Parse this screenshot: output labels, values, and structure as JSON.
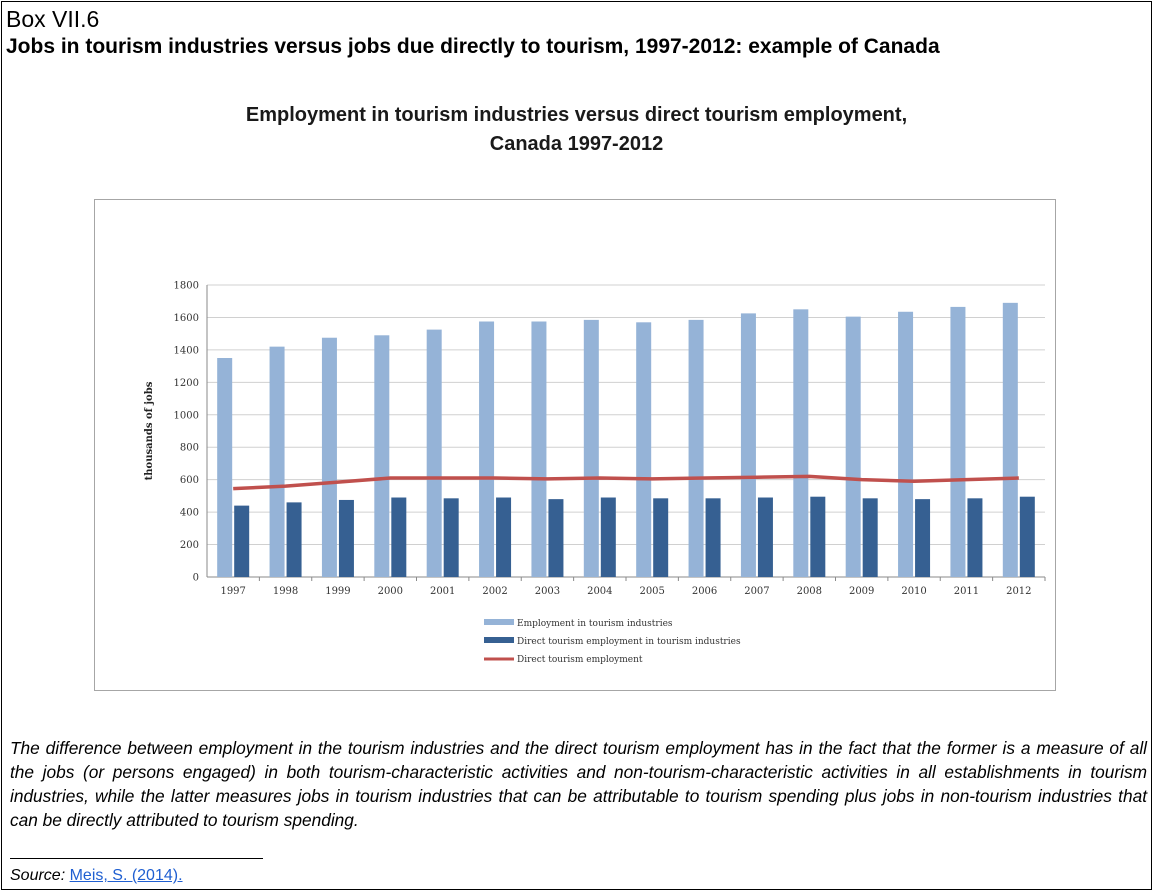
{
  "box": {
    "label": "Box VII.6",
    "title": "Jobs in tourism industries versus jobs due directly to tourism, 1997-2012: example of Canada"
  },
  "chart_data": {
    "type": "bar",
    "title_lines": [
      "Employment in tourism industries versus direct tourism employment,",
      "Canada 1997-2012"
    ],
    "xlabel": "",
    "ylabel": "thousands of jobs",
    "ylim": [
      0,
      1800
    ],
    "yticks": [
      0,
      200,
      400,
      600,
      800,
      1000,
      1200,
      1400,
      1600,
      1800
    ],
    "grid": true,
    "legend_position": "bottom",
    "categories": [
      "1997",
      "1998",
      "1999",
      "2000",
      "2001",
      "2002",
      "2003",
      "2004",
      "2005",
      "2006",
      "2007",
      "2008",
      "2009",
      "2010",
      "2011",
      "2012"
    ],
    "series": [
      {
        "name": "Employment in tourism industries",
        "kind": "bar",
        "color": "#95b3d7",
        "values": [
          1350,
          1420,
          1475,
          1490,
          1525,
          1575,
          1575,
          1585,
          1570,
          1585,
          1625,
          1650,
          1605,
          1635,
          1665,
          1690
        ]
      },
      {
        "name": "Direct tourism employment in tourism industries",
        "kind": "bar",
        "color": "#366092",
        "values": [
          440,
          460,
          475,
          490,
          485,
          490,
          480,
          490,
          485,
          485,
          490,
          495,
          485,
          480,
          485,
          495
        ]
      },
      {
        "name": "Direct tourism employment",
        "kind": "line",
        "color": "#c0504d",
        "values": [
          545,
          560,
          585,
          610,
          610,
          610,
          605,
          610,
          605,
          610,
          615,
          620,
          600,
          590,
          600,
          610
        ]
      }
    ]
  },
  "note": "The difference between employment in the tourism industries and the direct tourism employment has in the fact that the former is a measure of all the jobs (or persons engaged) in both tourism-characteristic activities and non-tourism-characteristic activities in all establishments in tourism industries, while the latter measures jobs in tourism industries that can be attributable to tourism spending plus jobs in non-tourism industries that can be directly attributed to tourism spending.",
  "source": {
    "label": "Source:",
    "link_text": "Meis, S. (2014)."
  }
}
